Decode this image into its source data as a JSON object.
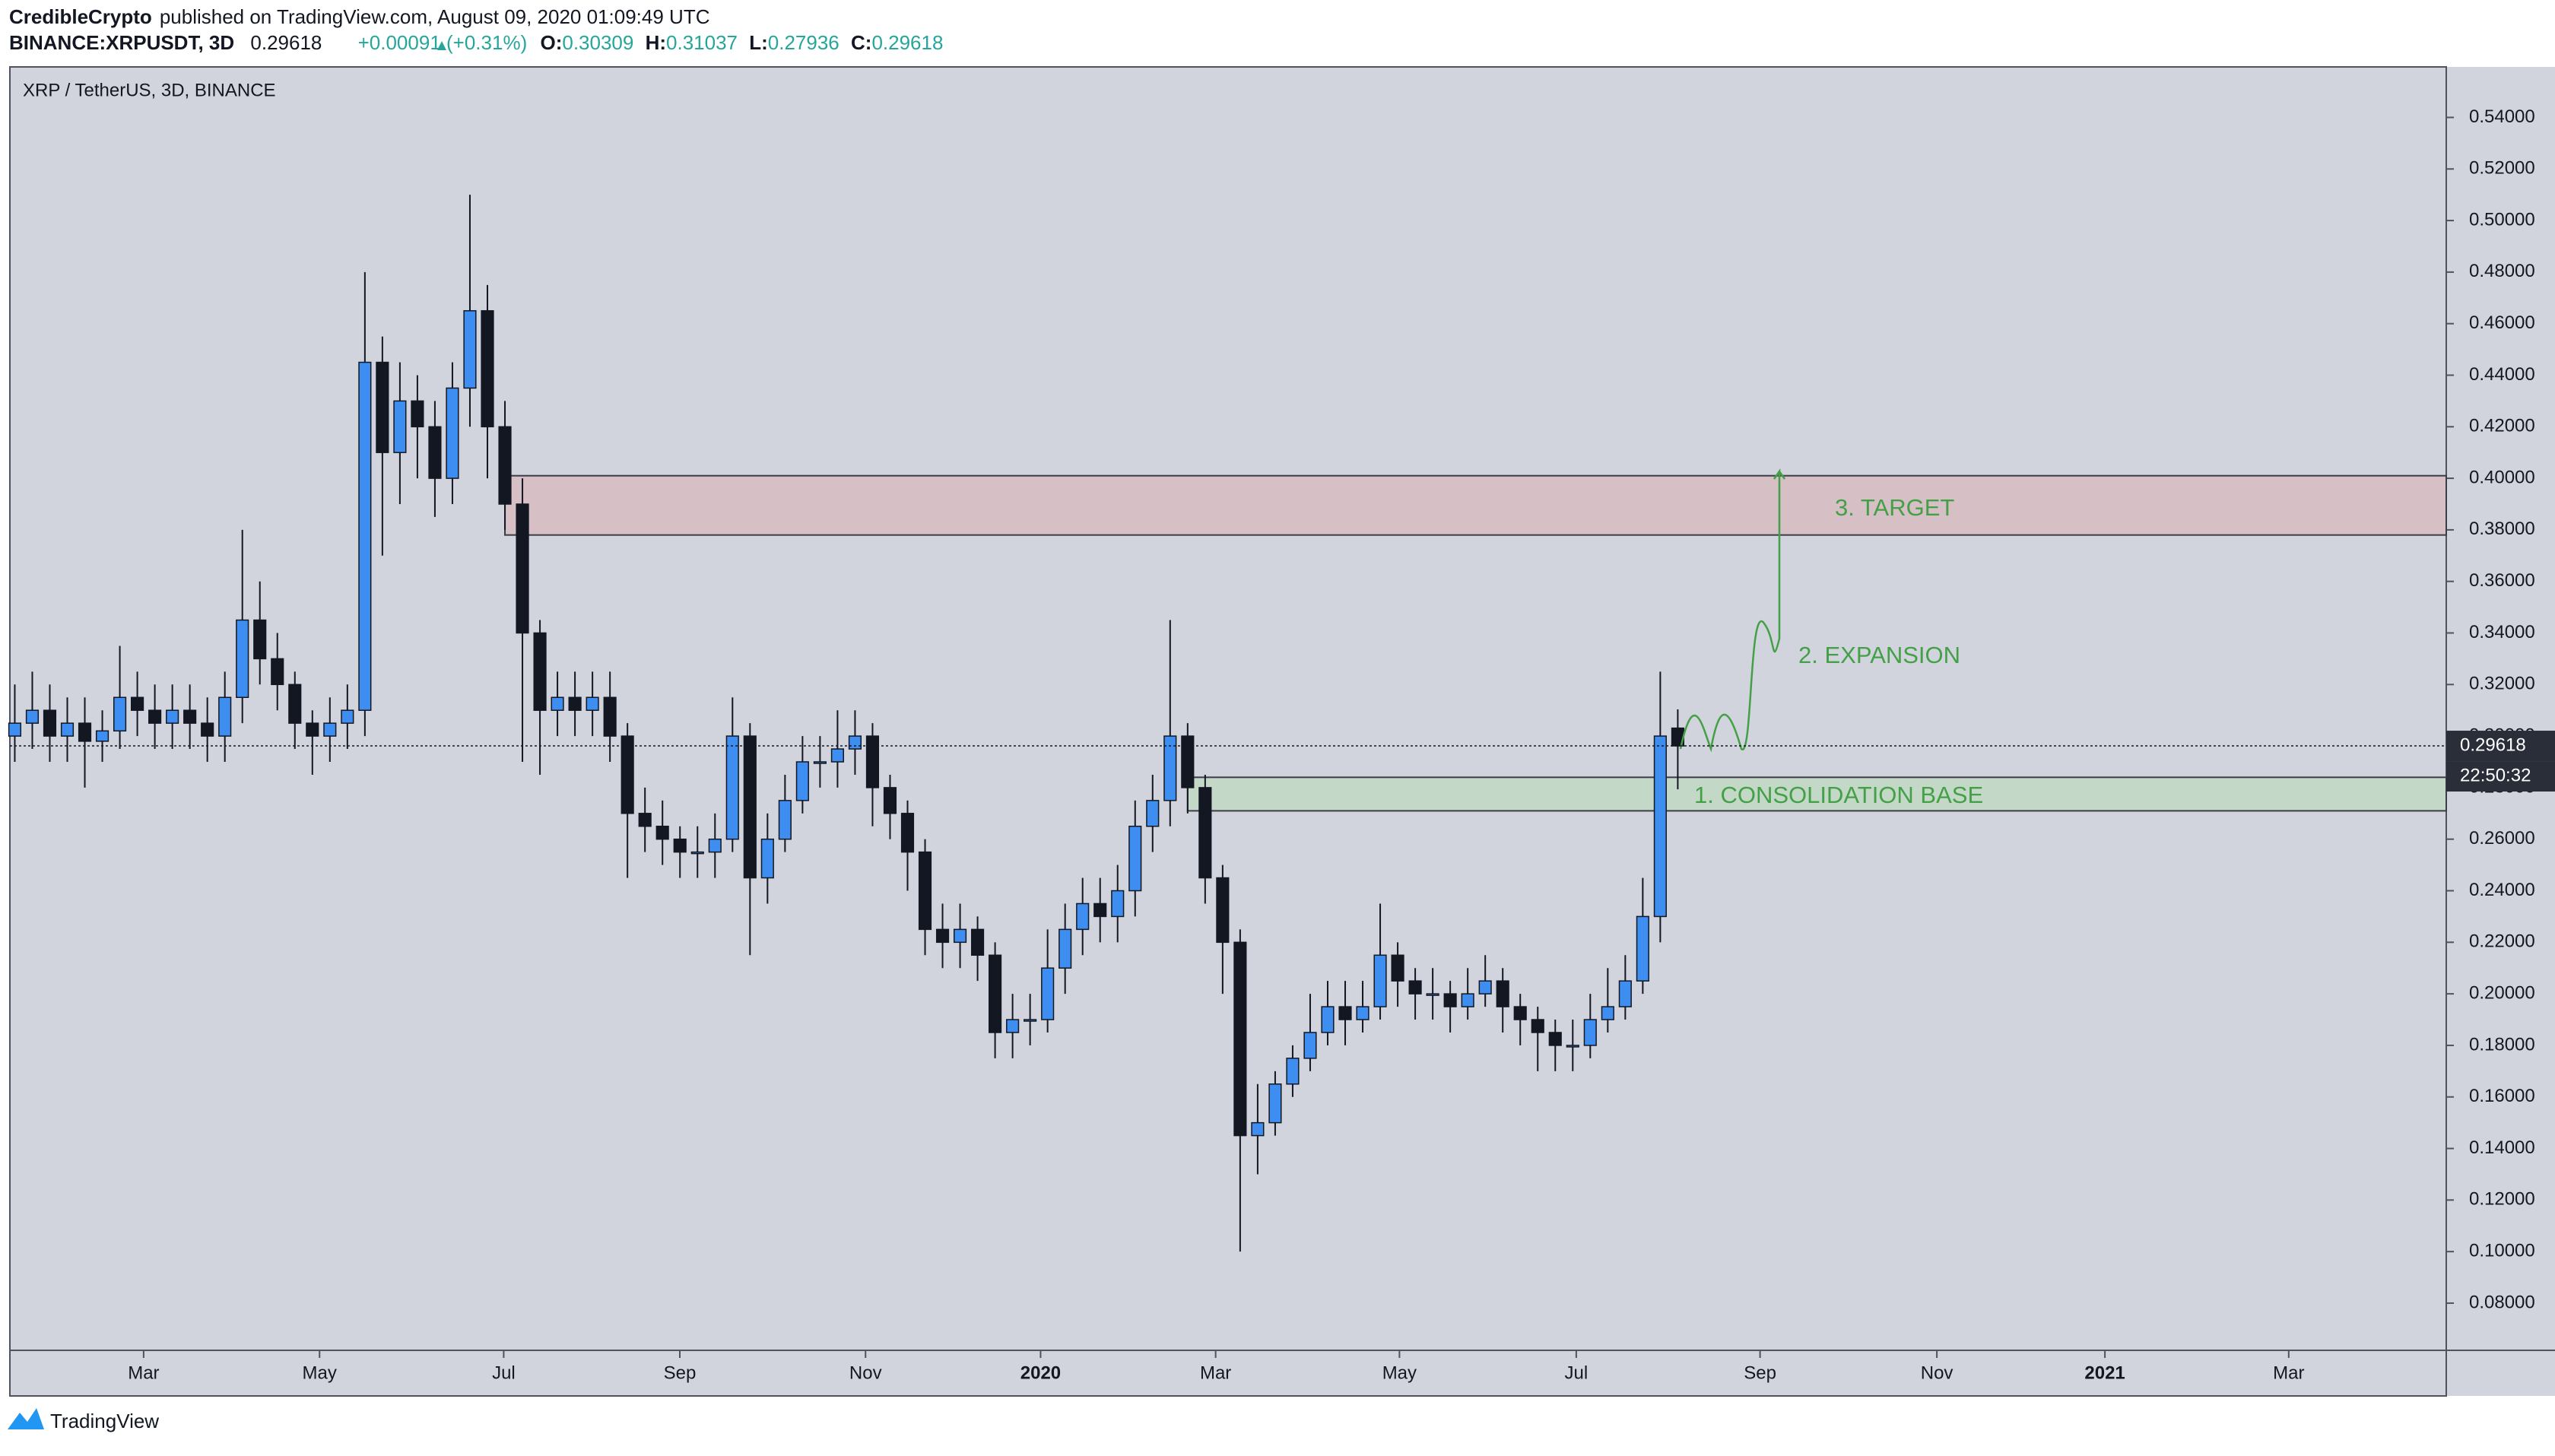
{
  "header": {
    "author": "CredibleCrypto",
    "published": "published on TradingView.com, August 09, 2020 01:09:49 UTC",
    "symbol": "BINANCE:XRPUSDT, 3D",
    "price": "0.29618",
    "change": "+0.00091 (+0.31%)",
    "ohlc": [
      {
        "key": "O:",
        "value": "0.30309"
      },
      {
        "key": "H:",
        "value": "0.31037"
      },
      {
        "key": "L:",
        "value": "0.27936"
      },
      {
        "key": "C:",
        "value": "0.29618"
      }
    ]
  },
  "footer": {
    "brand": "TradingView"
  },
  "chart_data": {
    "type": "candlestick",
    "title": "XRP / TetherUS, 3D, BINANCE",
    "open": [
      0.3,
      0.305,
      0.31,
      0.3,
      0.305,
      0.298,
      0.302,
      0.315,
      0.31,
      0.305,
      0.31,
      0.305,
      0.3,
      0.315,
      0.345,
      0.33,
      0.32,
      0.305,
      0.3,
      0.305,
      0.31,
      0.445,
      0.41,
      0.43,
      0.42,
      0.4,
      0.435,
      0.465,
      0.42,
      0.39,
      0.34,
      0.31,
      0.315,
      0.31,
      0.315,
      0.3,
      0.27,
      0.265,
      0.26,
      0.255,
      0.255,
      0.26,
      0.3,
      0.245,
      0.26,
      0.275,
      0.29,
      0.29,
      0.295,
      0.3,
      0.28,
      0.27,
      0.255,
      0.225,
      0.22,
      0.225,
      0.215,
      0.185,
      0.19,
      0.19,
      0.21,
      0.225,
      0.235,
      0.23,
      0.24,
      0.265,
      0.275,
      0.3,
      0.28,
      0.245,
      0.22,
      0.145,
      0.15,
      0.165,
      0.175,
      0.185,
      0.195,
      0.19,
      0.195,
      0.215,
      0.205,
      0.2,
      0.2,
      0.195,
      0.2,
      0.205,
      0.195,
      0.19,
      0.185,
      0.18,
      0.18,
      0.19,
      0.195,
      0.205,
      0.23,
      0.30309
    ],
    "high": [
      0.32,
      0.325,
      0.32,
      0.315,
      0.315,
      0.31,
      0.335,
      0.325,
      0.32,
      0.32,
      0.32,
      0.315,
      0.325,
      0.38,
      0.36,
      0.34,
      0.325,
      0.31,
      0.315,
      0.32,
      0.48,
      0.455,
      0.445,
      0.44,
      0.43,
      0.445,
      0.51,
      0.475,
      0.43,
      0.4,
      0.345,
      0.325,
      0.325,
      0.325,
      0.325,
      0.305,
      0.28,
      0.275,
      0.265,
      0.265,
      0.27,
      0.315,
      0.305,
      0.27,
      0.285,
      0.3,
      0.3,
      0.31,
      0.31,
      0.305,
      0.285,
      0.275,
      0.26,
      0.235,
      0.235,
      0.23,
      0.22,
      0.2,
      0.2,
      0.225,
      0.235,
      0.245,
      0.245,
      0.25,
      0.275,
      0.285,
      0.345,
      0.305,
      0.285,
      0.25,
      0.225,
      0.165,
      0.17,
      0.18,
      0.2,
      0.205,
      0.205,
      0.205,
      0.235,
      0.22,
      0.21,
      0.21,
      0.205,
      0.21,
      0.215,
      0.21,
      0.2,
      0.195,
      0.19,
      0.19,
      0.2,
      0.21,
      0.215,
      0.245,
      0.325,
      0.31037
    ],
    "low": [
      0.29,
      0.295,
      0.29,
      0.29,
      0.28,
      0.29,
      0.295,
      0.3,
      0.295,
      0.295,
      0.295,
      0.29,
      0.29,
      0.305,
      0.32,
      0.31,
      0.295,
      0.285,
      0.29,
      0.295,
      0.3,
      0.37,
      0.39,
      0.4,
      0.385,
      0.39,
      0.42,
      0.4,
      0.38,
      0.29,
      0.285,
      0.3,
      0.3,
      0.3,
      0.29,
      0.245,
      0.255,
      0.25,
      0.245,
      0.245,
      0.245,
      0.255,
      0.215,
      0.235,
      0.255,
      0.27,
      0.28,
      0.28,
      0.285,
      0.265,
      0.26,
      0.24,
      0.215,
      0.21,
      0.21,
      0.205,
      0.175,
      0.175,
      0.18,
      0.185,
      0.2,
      0.215,
      0.22,
      0.22,
      0.23,
      0.255,
      0.265,
      0.27,
      0.235,
      0.2,
      0.1,
      0.13,
      0.145,
      0.16,
      0.17,
      0.18,
      0.18,
      0.185,
      0.19,
      0.195,
      0.19,
      0.19,
      0.185,
      0.19,
      0.195,
      0.185,
      0.18,
      0.17,
      0.17,
      0.17,
      0.175,
      0.185,
      0.19,
      0.2,
      0.22,
      0.27936
    ],
    "close": [
      0.305,
      0.31,
      0.3,
      0.305,
      0.298,
      0.302,
      0.315,
      0.31,
      0.305,
      0.31,
      0.305,
      0.3,
      0.315,
      0.345,
      0.33,
      0.32,
      0.305,
      0.3,
      0.305,
      0.31,
      0.445,
      0.41,
      0.43,
      0.42,
      0.4,
      0.435,
      0.465,
      0.42,
      0.39,
      0.34,
      0.31,
      0.315,
      0.31,
      0.315,
      0.3,
      0.27,
      0.265,
      0.26,
      0.255,
      0.255,
      0.26,
      0.3,
      0.245,
      0.26,
      0.275,
      0.29,
      0.29,
      0.295,
      0.3,
      0.28,
      0.27,
      0.255,
      0.225,
      0.22,
      0.225,
      0.215,
      0.185,
      0.19,
      0.19,
      0.21,
      0.225,
      0.235,
      0.23,
      0.24,
      0.265,
      0.275,
      0.3,
      0.28,
      0.245,
      0.22,
      0.145,
      0.15,
      0.165,
      0.175,
      0.185,
      0.195,
      0.19,
      0.195,
      0.215,
      0.205,
      0.2,
      0.2,
      0.195,
      0.2,
      0.205,
      0.195,
      0.19,
      0.185,
      0.18,
      0.18,
      0.19,
      0.195,
      0.205,
      0.23,
      0.3,
      0.29618
    ],
    "up_color": "#3d8ef0",
    "down_color": "#131722",
    "xlim": [
      -0.28,
      138.9
    ],
    "xticks": [
      {
        "value": 7.36,
        "label": "Mar"
      },
      {
        "value": 17.41,
        "label": "May"
      },
      {
        "value": 27.93,
        "label": "Jul"
      },
      {
        "value": 37.99,
        "label": "Sep"
      },
      {
        "value": 48.6,
        "label": "Nov"
      },
      {
        "value": 58.6,
        "label": "2020"
      },
      {
        "value": 68.6,
        "label": "Mar"
      },
      {
        "value": 79.1,
        "label": "May"
      },
      {
        "value": 89.2,
        "label": "Jul"
      },
      {
        "value": 99.7,
        "label": "Sep"
      },
      {
        "value": 109.8,
        "label": "Nov"
      },
      {
        "value": 119.4,
        "label": "2021"
      },
      {
        "value": 129.9,
        "label": "Mar"
      }
    ],
    "ylim": [
      0.0617,
      0.5596
    ],
    "yticks": [
      {
        "value": 0.08,
        "label": "0.08000"
      },
      {
        "value": 0.1,
        "label": "0.10000"
      },
      {
        "value": 0.12,
        "label": "0.12000"
      },
      {
        "value": 0.14,
        "label": "0.14000"
      },
      {
        "value": 0.16,
        "label": "0.16000"
      },
      {
        "value": 0.18,
        "label": "0.18000"
      },
      {
        "value": 0.2,
        "label": "0.20000"
      },
      {
        "value": 0.22,
        "label": "0.22000"
      },
      {
        "value": 0.24,
        "label": "0.24000"
      },
      {
        "value": 0.26,
        "label": "0.26000"
      },
      {
        "value": 0.28,
        "label": "0.28000"
      },
      {
        "value": 0.3,
        "label": "0.30000"
      },
      {
        "value": 0.32,
        "label": "0.32000"
      },
      {
        "value": 0.34,
        "label": "0.34000"
      },
      {
        "value": 0.36,
        "label": "0.36000"
      },
      {
        "value": 0.38,
        "label": "0.38000"
      },
      {
        "value": 0.4,
        "label": "0.40000"
      },
      {
        "value": 0.42,
        "label": "0.42000"
      },
      {
        "value": 0.44,
        "label": "0.44000"
      },
      {
        "value": 0.46,
        "label": "0.46000"
      },
      {
        "value": 0.48,
        "label": "0.48000"
      },
      {
        "value": 0.5,
        "label": "0.50000"
      },
      {
        "value": 0.52,
        "label": "0.52000"
      },
      {
        "value": 0.54,
        "label": "0.54000"
      }
    ],
    "countdown": "22:50:32",
    "zones": [
      {
        "label": "3. TARGET",
        "top": 0.401,
        "bottom": 0.378,
        "start": 28,
        "color": "#d6bfc5"
      },
      {
        "label": "1. CONSOLIDATION BASE",
        "top": 0.284,
        "bottom": 0.271,
        "start": 67,
        "color": "#c4d8c8"
      }
    ],
    "annotations": [
      "2. EXPANSION"
    ]
  }
}
